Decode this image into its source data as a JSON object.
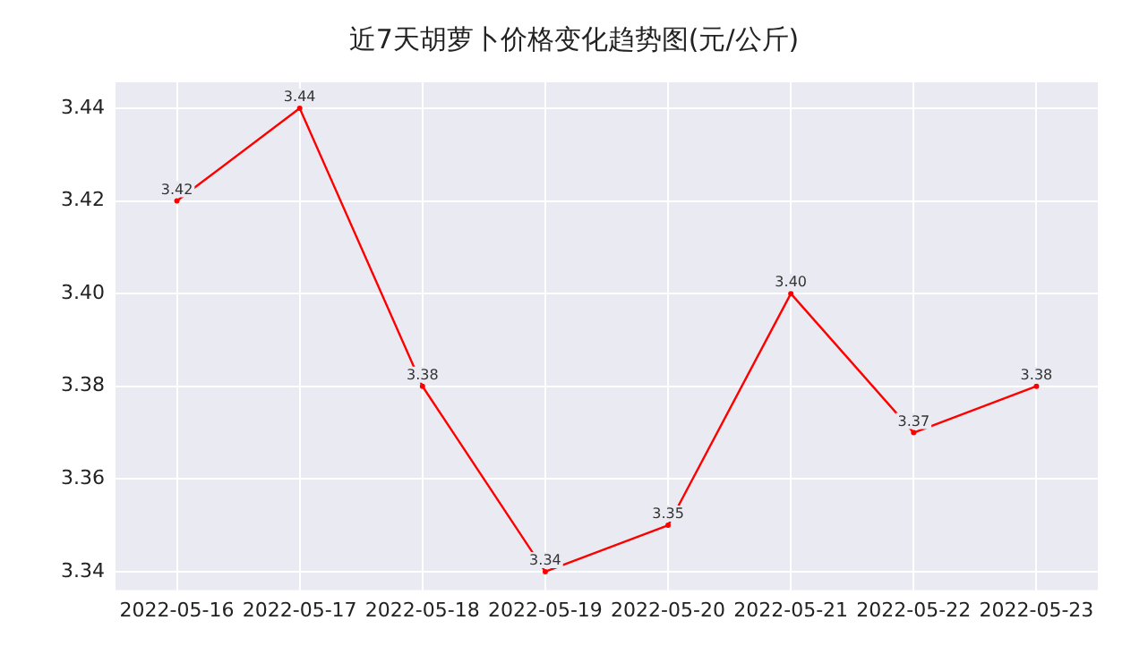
{
  "chart_data": {
    "type": "line",
    "title": "近7天胡萝卜价格变化趋势图(元/公斤)",
    "categories": [
      "2022-05-16",
      "2022-05-17",
      "2022-05-18",
      "2022-05-19",
      "2022-05-20",
      "2022-05-21",
      "2022-05-22",
      "2022-05-23"
    ],
    "series": [
      {
        "color": "#ff0000",
        "values": [
          3.42,
          3.44,
          3.38,
          3.34,
          3.35,
          3.4,
          3.37,
          3.38
        ],
        "value_labels": [
          "3.42",
          "3.44",
          "3.38",
          "3.34",
          "3.35",
          "3.40",
          "3.37",
          "3.38"
        ]
      }
    ],
    "ylim": [
      3.336,
      3.4456
    ],
    "yticks": [
      3.34,
      3.36,
      3.38,
      {
        "value": 3.4,
        "label": "3.40"
      },
      3.42,
      3.44
    ],
    "grid": true,
    "marker": "circle",
    "line_style": "solid",
    "legend": false
  }
}
